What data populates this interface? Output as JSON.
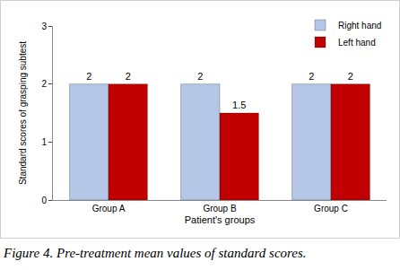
{
  "chart_data": {
    "type": "bar",
    "caption": "Figure 4. Pre-treatment mean values of standard scores.",
    "x_label": "Patient's groups",
    "y_label": "Standard scores of grasping subtest",
    "categories": [
      "Group A",
      "Group B",
      "Group C"
    ],
    "series": [
      {
        "name": "Right hand",
        "color": "#b4c7e7",
        "values": [
          2,
          2,
          2
        ]
      },
      {
        "name": "Left hand",
        "color": "#c00000",
        "values": [
          2,
          1.5,
          2
        ]
      }
    ],
    "ylim": [
      0,
      3
    ],
    "yticks": [
      0,
      1,
      2,
      3
    ],
    "grid": false,
    "legend": "upper right",
    "data_labels": true
  }
}
